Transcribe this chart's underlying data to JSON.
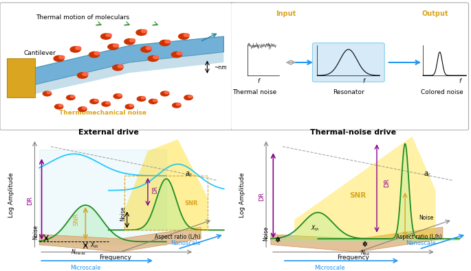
{
  "top_panel": {
    "cantilever_label": "Cantilever",
    "thermal_motion_label": "Thermal motion of moleculars",
    "thermo_noise_label": "Thermomechanical noise",
    "nm_label": "~nm",
    "input_label": "Input",
    "output_label": "Output",
    "thermal_noise_label2": "Thermal noise",
    "resonator_label": "Resonator",
    "colored_noise_label": "Colored noise"
  },
  "left_plot": {
    "title": "External drive",
    "xlabel": "Frequency",
    "ylabel": "Log Amplitude",
    "xaxis2": "Aspect ratio (L/h)",
    "microscale": "Microscale",
    "nanoscale": "Nanoscale",
    "labels": [
      "DR",
      "SNR",
      "Noise",
      "X_th",
      "N_meas",
      "a_c",
      "DR",
      "SNR",
      "Noise"
    ]
  },
  "right_plot": {
    "title": "Thermal-noise drive",
    "xlabel": "Frequency",
    "ylabel": "Log Amplitude",
    "xaxis2": "Aspect ratio (L/h)",
    "microscale": "Microscale",
    "nanoscale": "Nanoscale",
    "labels": [
      "DR",
      "DR",
      "SNR",
      "Noise",
      "X_th",
      "N_bk",
      "a_c",
      "Noise"
    ]
  },
  "colors": {
    "cyan_curve": "#00BFFF",
    "green_curve": "#228B22",
    "yellow_fill": "#FFD700",
    "light_yellow_fill": "#FFFACD",
    "orange_fill": "#DEB887",
    "purple_arrow": "#8B008B",
    "gold_arrow": "#DAA520",
    "blue_bg": "#E8F4F8",
    "light_blue_fill": "#D6EAF8",
    "green_fill": "#90EE90",
    "dashed_line": "#808080",
    "orange_box": "#CD853F"
  }
}
